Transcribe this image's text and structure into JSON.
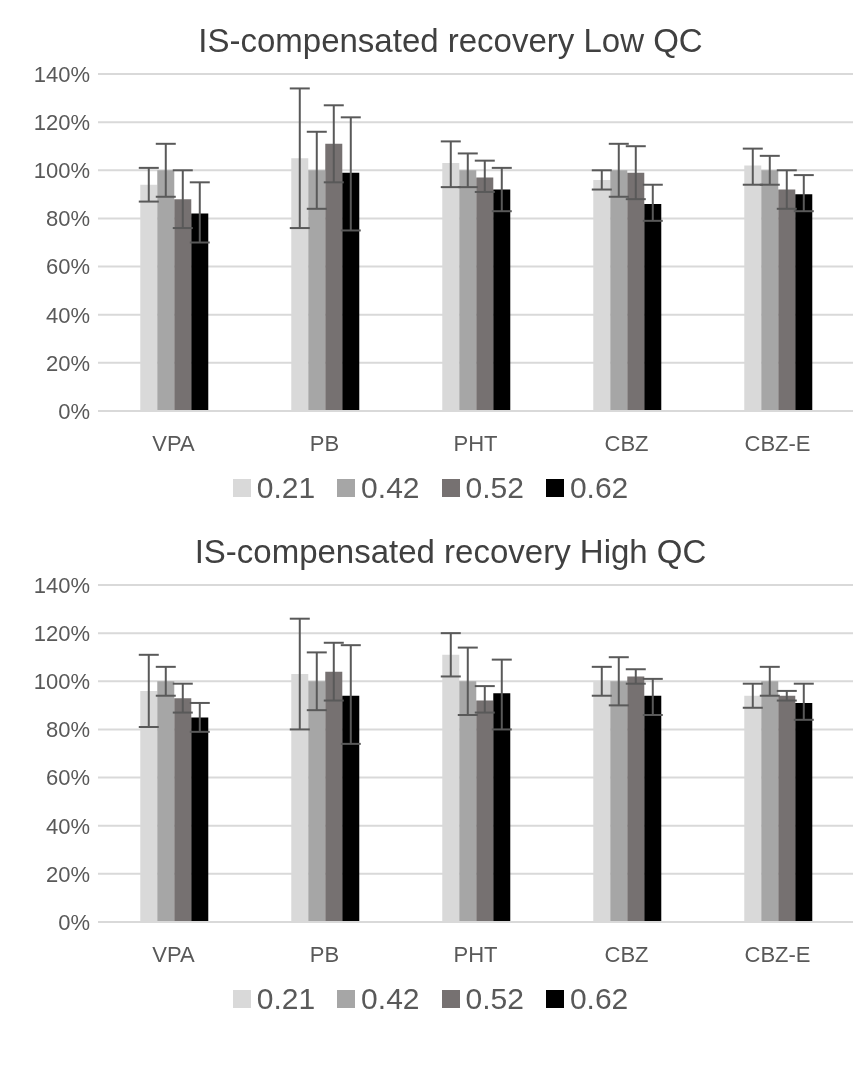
{
  "chart_data": [
    {
      "type": "bar",
      "title": "IS-compensated recovery Low QC",
      "categories": [
        "VPA",
        "PB",
        "PHT",
        "CBZ",
        "CBZ-E"
      ],
      "series": [
        {
          "name": "0.21",
          "color": "#d9d9d9",
          "values": [
            94,
            105,
            103,
            96,
            102
          ],
          "errors": [
            [
              87,
              101
            ],
            [
              76,
              134
            ],
            [
              93,
              112
            ],
            [
              92,
              100
            ],
            [
              94,
              109
            ]
          ]
        },
        {
          "name": "0.42",
          "color": "#a6a6a6",
          "values": [
            100,
            100,
            100,
            100,
            100
          ],
          "errors": [
            [
              89,
              111
            ],
            [
              84,
              116
            ],
            [
              93,
              107
            ],
            [
              89,
              111
            ],
            [
              94,
              106
            ]
          ]
        },
        {
          "name": "0.52",
          "color": "#767171",
          "values": [
            88,
            111,
            97,
            99,
            92
          ],
          "errors": [
            [
              76,
              100
            ],
            [
              95,
              127
            ],
            [
              91,
              104
            ],
            [
              88,
              110
            ],
            [
              84,
              100
            ]
          ]
        },
        {
          "name": "0.62",
          "color": "#000000",
          "values": [
            82,
            99,
            92,
            86,
            90
          ],
          "errors": [
            [
              70,
              95
            ],
            [
              75,
              122
            ],
            [
              83,
              101
            ],
            [
              79,
              94
            ],
            [
              83,
              98
            ]
          ]
        }
      ],
      "ylim": [
        0,
        140
      ],
      "yticks": [
        {
          "value": 0,
          "label": "0%"
        },
        {
          "value": 20,
          "label": "20%"
        },
        {
          "value": 40,
          "label": "40%"
        },
        {
          "value": 60,
          "label": "60%"
        },
        {
          "value": 80,
          "label": "80%"
        },
        {
          "value": 100,
          "label": "100%"
        },
        {
          "value": 120,
          "label": "120%"
        },
        {
          "value": 140,
          "label": "140%"
        }
      ],
      "grid": "y",
      "legend": "bottom"
    },
    {
      "type": "bar",
      "title": "IS-compensated recovery High QC",
      "categories": [
        "VPA",
        "PB",
        "PHT",
        "CBZ",
        "CBZ-E"
      ],
      "series": [
        {
          "name": "0.21",
          "color": "#d9d9d9",
          "values": [
            96,
            103,
            111,
            100,
            94
          ],
          "errors": [
            [
              81,
              111
            ],
            [
              80,
              126
            ],
            [
              102,
              120
            ],
            [
              94,
              106
            ],
            [
              89,
              99
            ]
          ]
        },
        {
          "name": "0.42",
          "color": "#a6a6a6",
          "values": [
            100,
            100,
            100,
            100,
            100
          ],
          "errors": [
            [
              94,
              106
            ],
            [
              88,
              112
            ],
            [
              86,
              114
            ],
            [
              90,
              110
            ],
            [
              94,
              106
            ]
          ]
        },
        {
          "name": "0.52",
          "color": "#767171",
          "values": [
            93,
            104,
            92,
            102,
            94
          ],
          "errors": [
            [
              87,
              99
            ],
            [
              92,
              116
            ],
            [
              87,
              98
            ],
            [
              99,
              105
            ],
            [
              92,
              96
            ]
          ]
        },
        {
          "name": "0.62",
          "color": "#000000",
          "values": [
            85,
            94,
            95,
            94,
            91
          ],
          "errors": [
            [
              79,
              91
            ],
            [
              74,
              115
            ],
            [
              80,
              109
            ],
            [
              86,
              101
            ],
            [
              84,
              99
            ]
          ]
        }
      ],
      "ylim": [
        0,
        140
      ],
      "yticks": [
        {
          "value": 0,
          "label": "0%"
        },
        {
          "value": 20,
          "label": "20%"
        },
        {
          "value": 40,
          "label": "40%"
        },
        {
          "value": 60,
          "label": "60%"
        },
        {
          "value": 80,
          "label": "80%"
        },
        {
          "value": 100,
          "label": "100%"
        },
        {
          "value": 120,
          "label": "120%"
        },
        {
          "value": 140,
          "label": "140%"
        }
      ],
      "grid": "y",
      "legend": "bottom"
    }
  ]
}
